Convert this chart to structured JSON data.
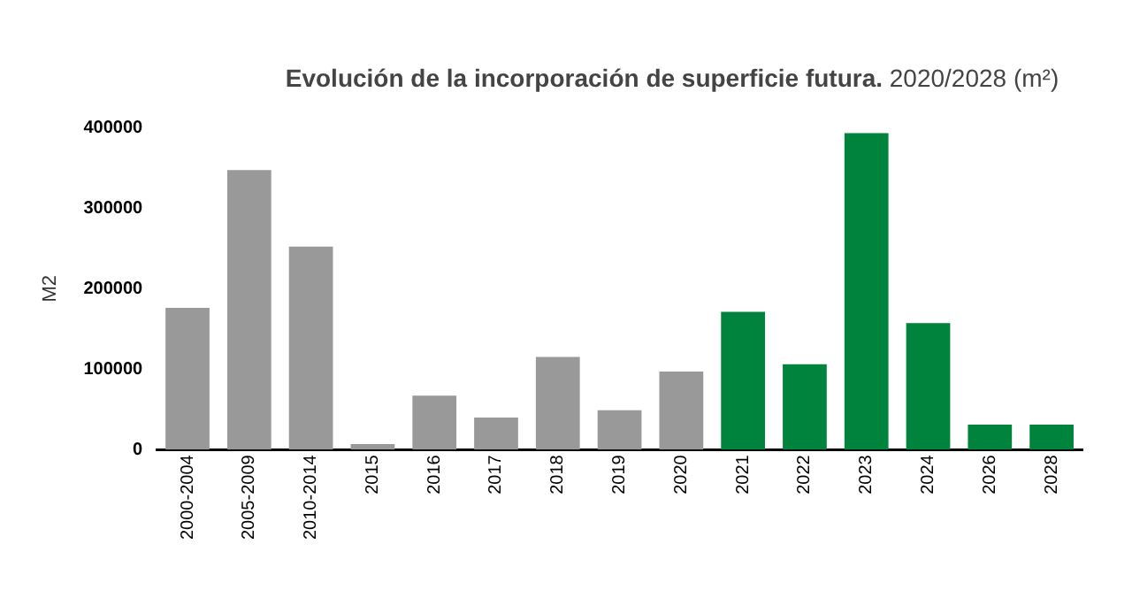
{
  "chart_data": {
    "type": "bar",
    "title": "Evolución de la incorporación de superficie futura.",
    "subtitle": "2020/2028 (m²)",
    "ylabel": "M2",
    "categories": [
      "2000-2004",
      "2005-2009",
      "2010-2014",
      "2015",
      "2016",
      "2017",
      "2018",
      "2019",
      "2020",
      "2021",
      "2022",
      "2023",
      "2024",
      "2026",
      "2028"
    ],
    "values": [
      176000,
      347000,
      252000,
      7000,
      67000,
      40000,
      115000,
      49000,
      97000,
      171000,
      106000,
      393000,
      157000,
      31000,
      31000
    ],
    "colors": [
      "#999999",
      "#999999",
      "#999999",
      "#999999",
      "#999999",
      "#999999",
      "#999999",
      "#999999",
      "#999999",
      "#00843d",
      "#00843d",
      "#00843d",
      "#00843d",
      "#00843d",
      "#00843d"
    ],
    "ylim": [
      0,
      400000
    ],
    "yticks": [
      0,
      100000,
      200000,
      300000,
      400000
    ],
    "grid": false,
    "legend": false
  }
}
